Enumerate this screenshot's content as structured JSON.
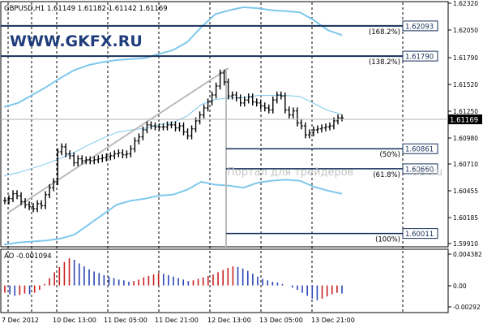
{
  "symbol_header": "GBPUSD,H1  1.61149 1.61182 1.61142 1.61169",
  "watermark_site": "WWW.GKFX.RU",
  "watermark_ru": "Портал для трейдеров",
  "watermark_tail": "der.ru",
  "indicator_label": "AO -0.001094",
  "current_price": "1.61169",
  "price_axis": [
    "1.62320",
    "1.62050",
    "1.61790",
    "1.61520",
    "1.61250",
    "1.60980",
    "1.60710",
    "1.60455",
    "1.60185",
    "1.59910"
  ],
  "ao_axis": [
    "0.004382",
    "0.00",
    "-0.00292"
  ],
  "time_axis": [
    "7 Dec 2012",
    "10 Dec 13:00",
    "11 Dec 05:00",
    "11 Dec 21:00",
    "12 Dec 13:00",
    "13 Dec 05:00",
    "13 Dec 21:00"
  ],
  "fib_levels": [
    {
      "label": "(168.2%)",
      "price": "1.62093"
    },
    {
      "label": "(138.2%)",
      "price": "1.61790"
    },
    {
      "label": "(50%)",
      "price": "1.60861"
    },
    {
      "label": "(61.8%)",
      "price": "1.60660"
    },
    {
      "label": "(100%)",
      "price": "1.60011"
    }
  ],
  "colors": {
    "candles": "#000000",
    "bands": "#7ec8ec",
    "fib": "#16305a",
    "ao_up": "#c81f1f",
    "ao_down": "#2a46b8",
    "grid": "#000000",
    "trend": "#bbbbbb"
  },
  "chart_data": {
    "type": "candlestick",
    "instrument": "GBPUSD,H1",
    "x_labels": [
      "7 Dec 2012",
      "10 Dec 13:00",
      "11 Dec 05:00",
      "11 Dec 21:00",
      "12 Dec 13:00",
      "13 Dec 05:00",
      "13 Dec 21:00"
    ],
    "close_series": [
      1.6034,
      1.6036,
      1.6041,
      1.6039,
      1.6033,
      1.603,
      1.6028,
      1.6026,
      1.6031,
      1.6029,
      1.604,
      1.6047,
      1.6053,
      1.6083,
      1.6088,
      1.6081,
      1.6079,
      1.6072,
      1.6076,
      1.6074,
      1.6075,
      1.6074,
      1.6075,
      1.6076,
      1.6077,
      1.6078,
      1.6079,
      1.6081,
      1.6082,
      1.608,
      1.6081,
      1.6086,
      1.6094,
      1.6098,
      1.6105,
      1.611,
      1.6109,
      1.6108,
      1.6108,
      1.6108,
      1.611,
      1.611,
      1.6107,
      1.6109,
      1.6103,
      1.6099,
      1.6106,
      1.6114,
      1.612,
      1.6127,
      1.6133,
      1.614,
      1.6149,
      1.6162,
      1.6153,
      1.6139,
      1.614,
      1.6137,
      1.6132,
      1.6135,
      1.6138,
      1.6133,
      1.6132,
      1.6129,
      1.6127,
      1.6125,
      1.6135,
      1.614,
      1.6139,
      1.6125,
      1.612,
      1.6124,
      1.6112,
      1.6109,
      1.61,
      1.6102,
      1.6105,
      1.6106,
      1.6107,
      1.6108,
      1.6109,
      1.6114,
      1.6117,
      1.6117
    ],
    "upper_band": [
      1.6128,
      1.6132,
      1.614,
      1.6148,
      1.6157,
      1.6165,
      1.617,
      1.6173,
      1.6175,
      1.6176,
      1.6177,
      1.6181,
      1.6185,
      1.6193,
      1.6208,
      1.6221,
      1.6225,
      1.6228,
      1.6227,
      1.6225,
      1.6224,
      1.6223,
      1.6215,
      1.6205,
      1.62
    ],
    "lower_band": [
      1.599,
      1.5992,
      1.5993,
      1.5994,
      1.5996,
      1.6,
      1.601,
      1.602,
      1.603,
      1.6034,
      1.6036,
      1.6039,
      1.604,
      1.6045,
      1.6053,
      1.605,
      1.6049,
      1.6047,
      1.6052,
      1.6054,
      1.6055,
      1.6054,
      1.6048,
      1.6044,
      1.6041
    ],
    "fibonacci": [
      {
        "level": "168.2%",
        "price": 1.62093
      },
      {
        "level": "138.2%",
        "price": 1.6179
      },
      {
        "level": "50%",
        "price": 1.60861
      },
      {
        "level": "61.8%",
        "price": 1.6066
      },
      {
        "level": "100%",
        "price": 1.60011
      }
    ],
    "ylim": [
      1.5991,
      1.6232
    ],
    "indicator": {
      "name": "AO",
      "value": -0.001094,
      "ylim": [
        -0.00292,
        0.004382
      ],
      "values": [
        -0.001,
        -0.0012,
        -0.0014,
        -0.0013,
        -0.0011,
        -0.0012,
        -0.001,
        -0.0006,
        0.0002,
        0.001,
        0.0018,
        0.0025,
        0.0032,
        0.0037,
        0.0035,
        0.003,
        0.0026,
        0.0022,
        0.0019,
        0.0017,
        0.0014,
        0.0012,
        0.001,
        0.0008,
        0.0007,
        0.0005,
        0.0006,
        0.0008,
        0.0011,
        0.0013,
        0.0015,
        0.0017,
        0.0016,
        0.0014,
        0.0012,
        0.001,
        0.0008,
        0.0006,
        0.0007,
        0.0009,
        0.0011,
        0.0013,
        0.0015,
        0.0018,
        0.0021,
        0.0024,
        0.0026,
        0.0025,
        0.0023,
        0.002,
        0.0016,
        0.0012,
        0.0009,
        0.0007,
        0.0005,
        0.0004,
        0.0002,
        0.0,
        -0.0003,
        -0.0006,
        -0.001,
        -0.0014,
        -0.0018,
        -0.002,
        -0.0018,
        -0.0015,
        -0.0012,
        -0.001,
        -0.0011
      ]
    }
  }
}
